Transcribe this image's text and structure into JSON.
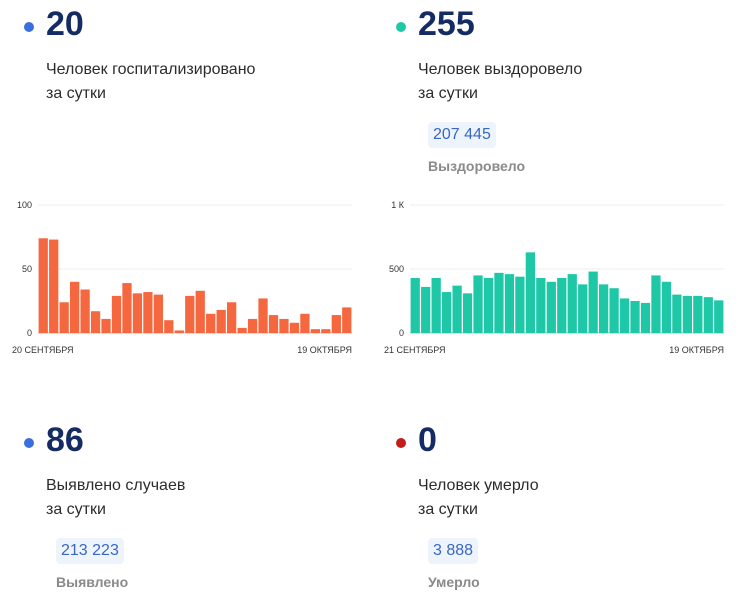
{
  "hospitalized": {
    "value": "20",
    "line1": "Человек госпитализировано",
    "line2": "за сутки",
    "dot_color": "#3b6fdc"
  },
  "recovered": {
    "value": "255",
    "line1": "Человек выздоровело",
    "line2": "за сутки",
    "total": "207 445",
    "total_label": "Выздоровело",
    "dot_color": "#1ec8a6"
  },
  "cases": {
    "value": "86",
    "line1": "Выявлено случаев",
    "line2": "за сутки",
    "total": "213 223",
    "total_label": "Выявлено",
    "dot_color": "#3b6fdc"
  },
  "deaths": {
    "value": "0",
    "line1": "Человек умерло",
    "line2": "за сутки",
    "total": "3 888",
    "total_label": "Умерло",
    "dot_color": "#c21d1d"
  },
  "chart_data": [
    {
      "type": "bar",
      "color": "#f4673f",
      "yticks": [
        "100",
        "50",
        "0"
      ],
      "ytick_values": [
        100,
        50,
        0
      ],
      "ylim": [
        0,
        100
      ],
      "x_start_label": "20 СЕНТЯБРЯ",
      "x_end_label": "19 ОКТЯБРЯ",
      "values": [
        74,
        73,
        24,
        40,
        34,
        17,
        11,
        29,
        39,
        31,
        32,
        30,
        10,
        2,
        29,
        33,
        15,
        18,
        24,
        4,
        11,
        27,
        14,
        11,
        8,
        15,
        3,
        3,
        14,
        20
      ]
    },
    {
      "type": "bar",
      "color": "#1ec8a6",
      "yticks": [
        "1 К",
        "500",
        "0"
      ],
      "ytick_values": [
        1000,
        500,
        0
      ],
      "ylim": [
        0,
        1000
      ],
      "x_start_label": "21 СЕНТЯБРЯ",
      "x_end_label": "19 ОКТЯБРЯ",
      "values": [
        430,
        360,
        430,
        320,
        370,
        310,
        450,
        430,
        470,
        460,
        440,
        630,
        430,
        400,
        430,
        460,
        380,
        480,
        380,
        350,
        270,
        250,
        235,
        450,
        400,
        300,
        290,
        290,
        280,
        255
      ]
    }
  ]
}
